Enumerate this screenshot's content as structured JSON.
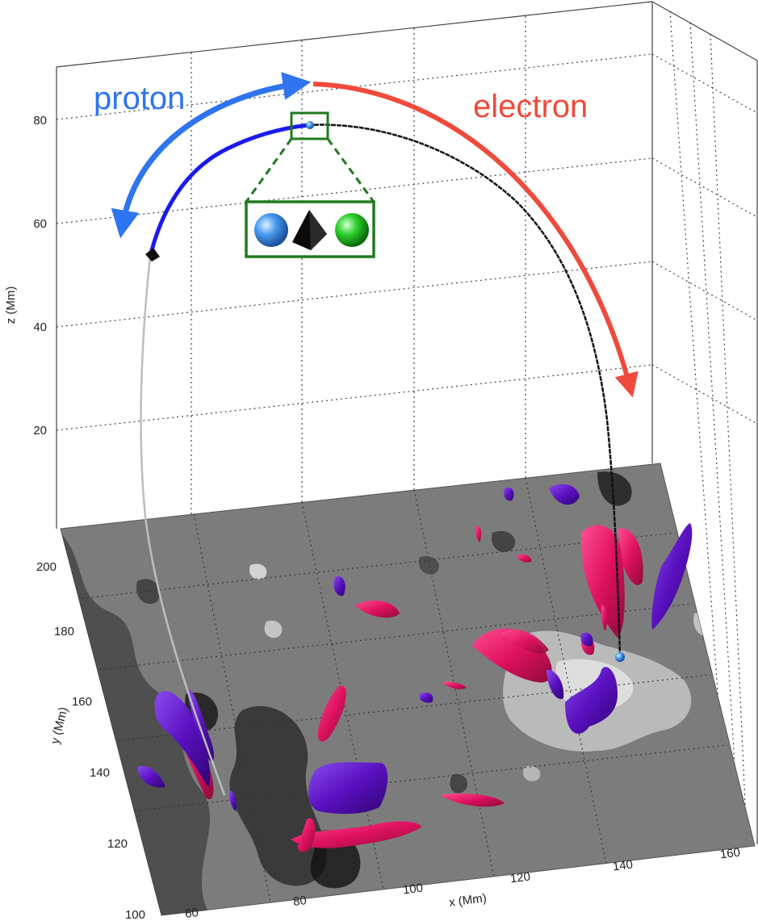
{
  "axes": {
    "z": {
      "label": "z (Mm)",
      "ticks": [
        "20",
        "40",
        "60",
        "80"
      ]
    },
    "y": {
      "label": "y (Mm)",
      "ticks": [
        "100",
        "120",
        "140",
        "160",
        "180",
        "200"
      ]
    },
    "x": {
      "label": "x (Mm)",
      "ticks": [
        "60",
        "80",
        "100",
        "120",
        "140",
        "160"
      ]
    }
  },
  "annotations": {
    "proton": "proton",
    "electron": "electron"
  },
  "colors": {
    "proton_arrow": "#2f74f0",
    "electron_arrow": "#f04a3c",
    "proton_trajectory": "#1a1aee",
    "electron_trajectory": "#111111",
    "magnetogram_base": "#7a7a7a",
    "isosurface_positive": "#e0125f",
    "isosurface_negative": "#5a10c0",
    "inset_border": "#1f7a1f"
  },
  "inset": {
    "items": [
      "sphere-blue",
      "pyramid-black",
      "sphere-green"
    ]
  }
}
